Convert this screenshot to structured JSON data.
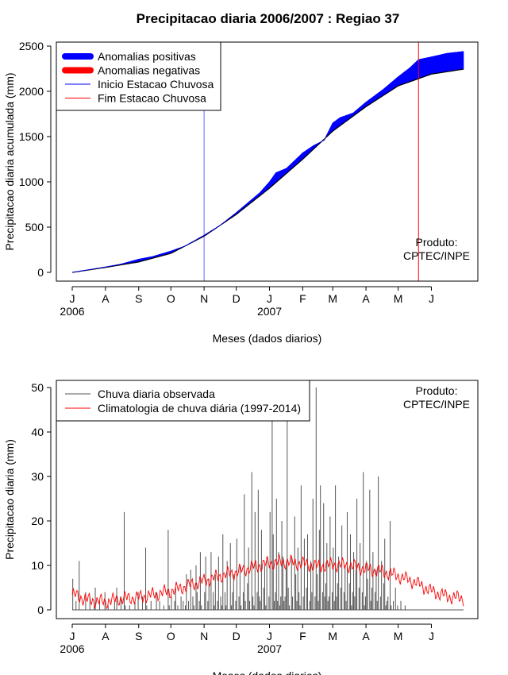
{
  "title": "Precipitacao diaria 2006/2007 : Regiao 37",
  "colors": {
    "positive": "#0000ff",
    "negative": "#ff0000",
    "line": "#000000",
    "start_season": "#0000ff",
    "end_season": "#ff0000",
    "daily_bars": "#555555",
    "climatology": "#ff0000"
  },
  "chart_data": [
    {
      "type": "area",
      "ylabel": "Precipitacao diaria acumulada (mm)",
      "xlabel": "Meses (dados diarios)",
      "ylim": [
        0,
        2500
      ],
      "yticks": [
        0,
        500,
        1000,
        1500,
        2000,
        2500
      ],
      "x_months": [
        "J",
        "A",
        "S",
        "O",
        "N",
        "D",
        "J",
        "F",
        "M",
        "A",
        "M",
        "J"
      ],
      "month_start_days": [
        0,
        31,
        62,
        92,
        123,
        153,
        184,
        215,
        243,
        274,
        304,
        335
      ],
      "year_labels": [
        {
          "day": 0,
          "label": "2006"
        },
        {
          "day": 184,
          "label": "2007"
        }
      ],
      "day_range": [
        0,
        365
      ],
      "legend": [
        {
          "label": "Anomalias positivas",
          "style": "thick",
          "color_key": "positive"
        },
        {
          "label": "Anomalias negativas",
          "style": "thick",
          "color_key": "negative"
        },
        {
          "label": "Inicio Estacao Chuvosa",
          "style": "thin",
          "color_key": "start_season"
        },
        {
          "label": "Fim Estacao Chuvosa",
          "style": "thin",
          "color_key": "end_season"
        }
      ],
      "product_label": [
        "Produto:",
        "CPTEC/INPE"
      ],
      "season_start_day": 123,
      "season_end_day": 323,
      "series": [
        {
          "name": "Climatologia acumulada",
          "days": [
            0,
            31,
            62,
            92,
            123,
            153,
            184,
            215,
            243,
            274,
            304,
            335,
            365
          ],
          "values": [
            0,
            55,
            115,
            210,
            400,
            640,
            930,
            1250,
            1560,
            1830,
            2060,
            2190,
            2245
          ]
        },
        {
          "name": "Observado acumulado",
          "days": [
            0,
            31,
            45,
            62,
            75,
            92,
            105,
            123,
            138,
            153,
            165,
            175,
            184,
            190,
            200,
            215,
            225,
            235,
            243,
            250,
            262,
            274,
            290,
            304,
            315,
            323,
            335,
            350,
            365
          ],
          "values": [
            0,
            60,
            90,
            145,
            175,
            235,
            290,
            410,
            520,
            660,
            780,
            880,
            1000,
            1100,
            1150,
            1320,
            1400,
            1460,
            1650,
            1710,
            1760,
            1880,
            2020,
            2160,
            2260,
            2350,
            2380,
            2420,
            2440
          ]
        }
      ]
    },
    {
      "type": "bar",
      "ylabel": "Precipitacao diaria (mm)",
      "xlabel": "Meses (dados diarios)",
      "ylim": [
        0,
        50
      ],
      "yticks": [
        0,
        10,
        20,
        30,
        40,
        50
      ],
      "x_months": [
        "J",
        "A",
        "S",
        "O",
        "N",
        "D",
        "J",
        "F",
        "M",
        "A",
        "M",
        "J"
      ],
      "month_start_days": [
        0,
        31,
        62,
        92,
        123,
        153,
        184,
        215,
        243,
        274,
        304,
        335
      ],
      "year_labels": [
        {
          "day": 0,
          "label": "2006"
        },
        {
          "day": 184,
          "label": "2007"
        }
      ],
      "day_range": [
        0,
        365
      ],
      "legend": [
        {
          "label": "Chuva diaria observada",
          "color_key": "daily_bars"
        },
        {
          "label": "Climatologia de chuva diária (1997-2014)",
          "color_key": "climatology"
        }
      ],
      "product_label": [
        "Produto:",
        "CPTEC/INPE"
      ],
      "daily_rain": [
        7,
        0,
        0,
        2,
        0,
        0,
        11,
        0,
        0,
        0,
        0,
        0,
        4,
        0,
        0,
        0,
        3,
        0,
        0,
        0,
        1,
        5,
        0,
        0,
        0,
        2,
        0,
        0,
        0,
        0,
        4,
        0,
        0,
        1,
        0,
        0,
        0,
        0,
        0,
        2,
        0,
        5,
        0,
        0,
        0,
        3,
        0,
        0,
        22,
        1,
        0,
        0,
        0,
        1,
        0,
        0,
        0,
        0,
        2,
        0,
        0,
        4,
        0,
        0,
        0,
        3,
        0,
        0,
        14,
        1,
        0,
        0,
        0,
        2,
        0,
        0,
        0,
        0,
        4,
        0,
        0,
        2,
        0,
        0,
        0,
        1,
        0,
        0,
        0,
        18,
        1,
        0,
        3,
        0,
        0,
        2,
        5,
        0,
        1,
        0,
        0,
        3,
        0,
        2,
        0,
        1,
        8,
        0,
        2,
        0,
        9,
        0,
        3,
        1,
        0,
        10,
        4,
        0,
        2,
        13,
        1,
        0,
        0,
        4,
        12,
        0,
        2,
        7,
        0,
        13,
        0,
        4,
        1,
        8,
        0,
        2,
        12,
        0,
        3,
        1,
        17,
        0,
        4,
        1,
        11,
        0,
        0,
        15,
        1,
        4,
        8,
        0,
        2,
        16,
        0,
        3,
        10,
        1,
        0,
        4,
        26,
        2,
        0,
        6,
        14,
        2,
        0,
        31,
        3,
        1,
        22,
        0,
        4,
        27,
        3,
        2,
        18,
        0,
        5,
        10,
        1,
        12,
        0,
        3,
        22,
        0,
        43,
        17,
        2,
        4,
        25,
        2,
        13,
        1,
        3,
        20,
        12,
        2,
        3,
        10,
        43,
        5,
        1,
        0,
        12,
        3,
        0,
        21,
        8,
        2,
        14,
        4,
        1,
        28,
        0,
        3,
        16,
        0,
        5,
        17,
        0,
        2,
        11,
        4,
        25,
        0,
        3,
        50,
        8,
        2,
        18,
        28,
        0,
        4,
        24,
        3,
        6,
        15,
        2,
        3,
        21,
        0,
        4,
        14,
        2,
        28,
        3,
        6,
        12,
        0,
        5,
        19,
        0,
        4,
        10,
        2,
        22,
        0,
        6,
        17,
        1,
        4,
        13,
        3,
        9,
        25,
        0,
        5,
        15,
        0,
        4,
        31,
        1,
        3,
        11,
        7,
        0,
        27,
        2,
        5,
        13,
        0,
        4,
        9,
        2,
        30,
        0,
        3,
        11,
        0,
        6,
        16,
        1,
        2,
        3,
        0,
        20,
        1,
        0,
        2,
        0,
        5,
        0,
        1,
        0,
        0,
        2,
        0,
        0,
        0,
        1,
        0,
        0,
        0,
        0,
        0,
        0,
        0,
        0,
        0,
        0,
        0,
        0,
        0,
        0,
        0,
        0,
        0,
        0,
        0,
        0,
        0,
        0,
        0,
        0,
        0,
        0,
        0,
        0,
        0,
        0,
        0,
        0,
        0,
        0,
        0,
        0,
        0,
        0,
        0,
        0,
        0,
        0,
        0,
        0,
        0,
        0,
        0,
        0,
        0,
        0,
        0,
        0,
        0,
        0,
        0,
        0,
        0
      ],
      "climatology": {
        "days": [
          0,
          15,
          31,
          45,
          62,
          75,
          92,
          105,
          123,
          138,
          153,
          168,
          184,
          200,
          215,
          230,
          243,
          258,
          274,
          290,
          304,
          320,
          335,
          350,
          365
        ],
        "values": [
          3.5,
          2.2,
          1.8,
          2.5,
          2.8,
          3.4,
          4.2,
          5.2,
          6.5,
          7.6,
          8.5,
          9.6,
          10.5,
          10.8,
          10.4,
          9.8,
          10.2,
          10.0,
          9.2,
          8.6,
          7.6,
          6.2,
          4.2,
          3.0,
          2.6
        ]
      }
    }
  ]
}
